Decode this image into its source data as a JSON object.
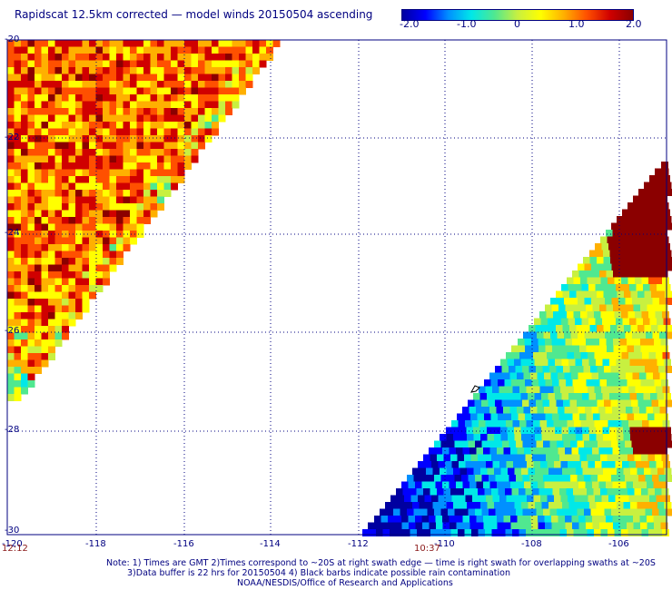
{
  "title": "Rapidscat 12.5km corrected — model winds 20150504 ascending",
  "colorbar": {
    "labels": [
      "-2.0",
      "-1.0",
      "0",
      "1.0",
      "2.0"
    ],
    "colors": [
      "#0000a0",
      "#0000ff",
      "#0090ff",
      "#00e8e8",
      "#50e890",
      "#c8f040",
      "#ffff00",
      "#ffb000",
      "#ff5000",
      "#d00000",
      "#8b0000"
    ]
  },
  "axes": {
    "lat_labels": [
      "-20",
      "-22",
      "-24",
      "-26",
      "-28",
      "-30"
    ],
    "lon_labels": [
      "-120",
      "-118",
      "-116",
      "-114",
      "-112",
      "-110",
      "-108",
      "-106"
    ],
    "time_labels": [
      "12:12",
      "10:37"
    ]
  },
  "notes": [
    "Note: 1) Times are GMT 2)Times correspond to ~20S at right swath edge — time is right swath for overlapping swaths at ~20S",
    "3)Data buffer is 22 hrs for 20150504 4) Black barbs indicate possible rain contamination",
    "NOAA/NESDIS/Office of Research and Applications"
  ]
}
